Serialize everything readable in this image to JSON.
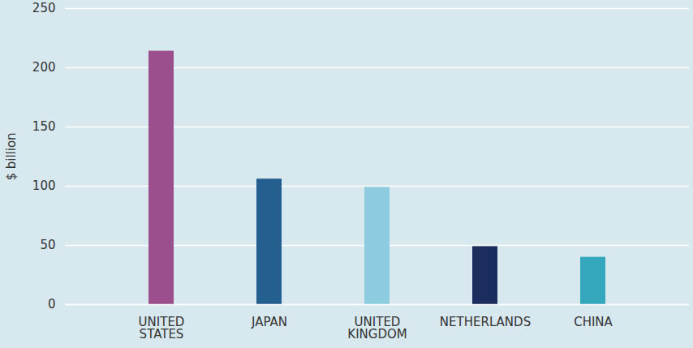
{
  "chart_data": {
    "type": "bar",
    "categories": [
      "UNITED STATES",
      "JAPAN",
      "UNITED KINGDOM",
      "NETHERLANDS",
      "CHINA"
    ],
    "values": [
      214,
      106,
      99,
      49,
      40
    ],
    "colors": [
      "#9b4f8c",
      "#245f90",
      "#8ccbe0",
      "#1b2d5c",
      "#35a7bd"
    ],
    "y_label": "$ billion",
    "ylim": [
      0,
      250
    ],
    "yticks": [
      0,
      50,
      100,
      150,
      200,
      250
    ],
    "grid": true
  }
}
